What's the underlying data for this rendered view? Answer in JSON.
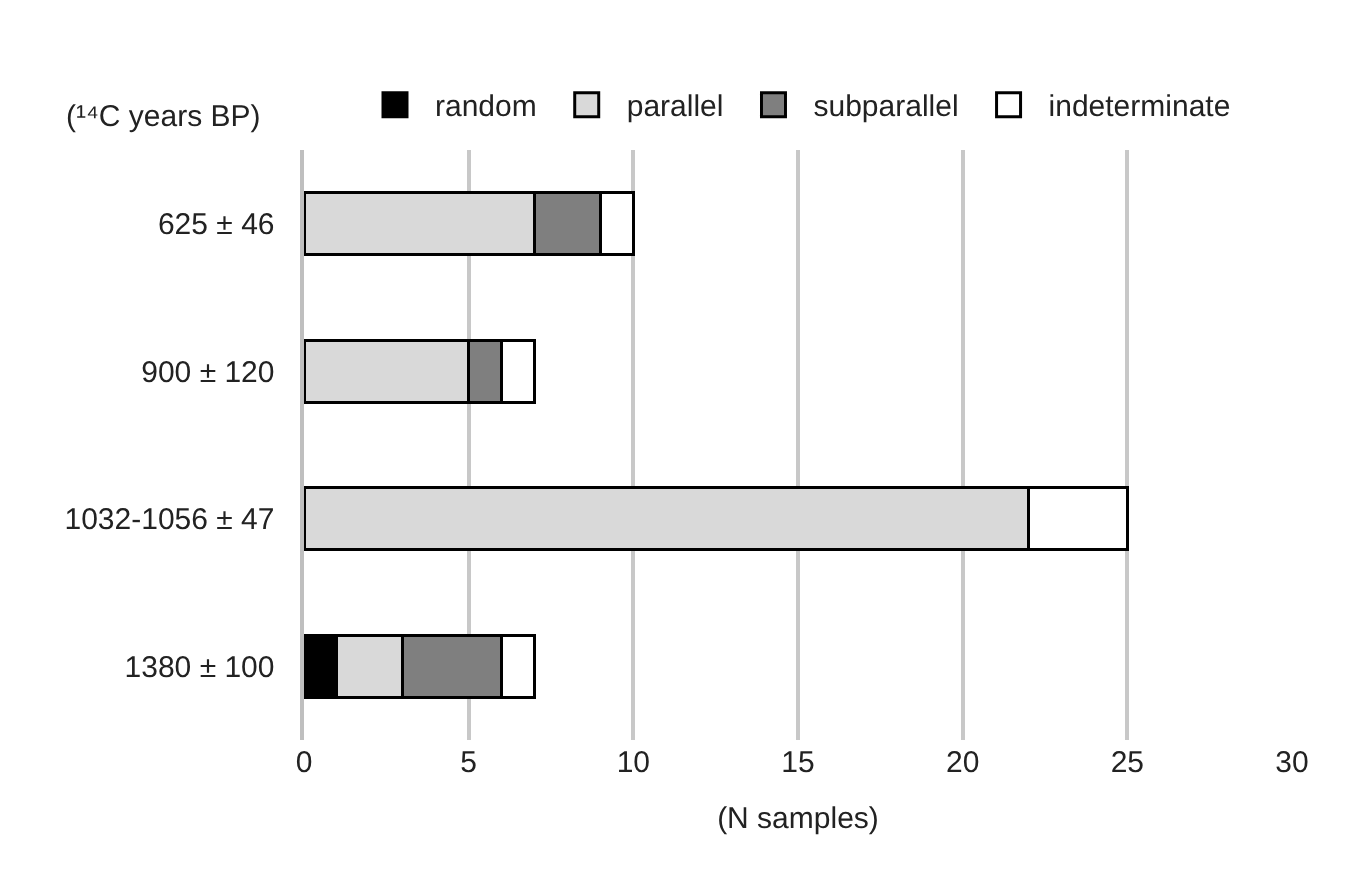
{
  "chart_data": {
    "type": "bar",
    "orientation": "horizontal",
    "stacked": true,
    "ylabel": "(¹⁴C years BP)",
    "xlabel": "(N samples)",
    "categories": [
      "625 ± 46",
      "900 ± 120",
      "1032-1056 ± 47",
      "1380 ± 100"
    ],
    "series": [
      {
        "name": "random",
        "color": "#000000",
        "values": [
          null,
          null,
          null,
          1
        ]
      },
      {
        "name": "parallel",
        "color": "#d9d9d9",
        "values": [
          7,
          5,
          22,
          2
        ]
      },
      {
        "name": "subparallel",
        "color": "#7f7f7f",
        "values": [
          2,
          1,
          null,
          3
        ]
      },
      {
        "name": "indeterminate",
        "color": "#ffffff",
        "values": [
          1,
          1,
          3,
          1
        ]
      }
    ],
    "xlim": [
      0,
      30
    ],
    "xticks": [
      0,
      5,
      10,
      15,
      20,
      25,
      30
    ],
    "grid": "x",
    "legend": "top"
  }
}
